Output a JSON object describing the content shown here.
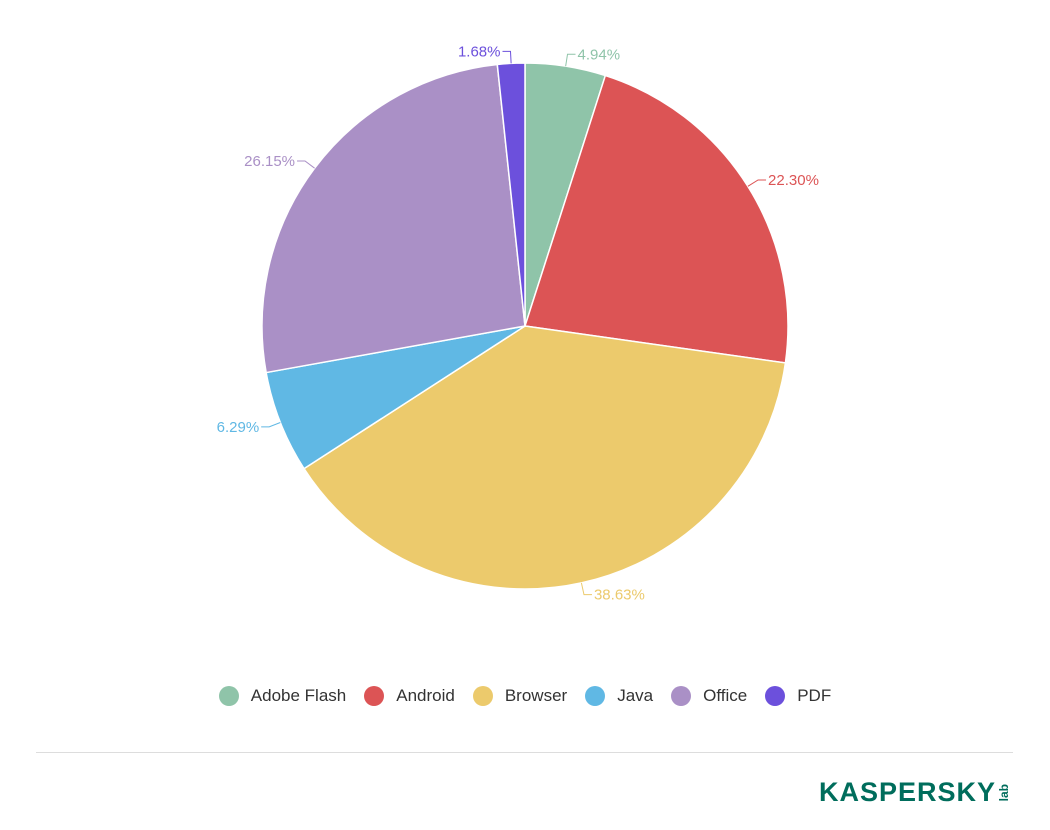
{
  "chart_data": {
    "type": "pie",
    "title": "",
    "start": "top-clockwise",
    "slices": [
      {
        "name": "Adobe Flash",
        "value": 4.94,
        "label": "4.94%",
        "color": "#8fc4a9"
      },
      {
        "name": "Android",
        "value": 22.3,
        "label": "22.30%",
        "color": "#dc5455"
      },
      {
        "name": "Browser",
        "value": 38.63,
        "label": "38.63%",
        "color": "#ecca6c"
      },
      {
        "name": "Java",
        "value": 6.29,
        "label": "6.29%",
        "color": "#60b8e4"
      },
      {
        "name": "Office",
        "value": 26.15,
        "label": "26.15%",
        "color": "#aa90c6"
      },
      {
        "name": "PDF",
        "value": 1.68,
        "label": "1.68%",
        "color": "#6c50dc"
      }
    ],
    "legend_position": "bottom-center"
  },
  "branding": {
    "logo_text": "KASPERSKY",
    "logo_sub": "lab",
    "color": "#006d5c"
  }
}
